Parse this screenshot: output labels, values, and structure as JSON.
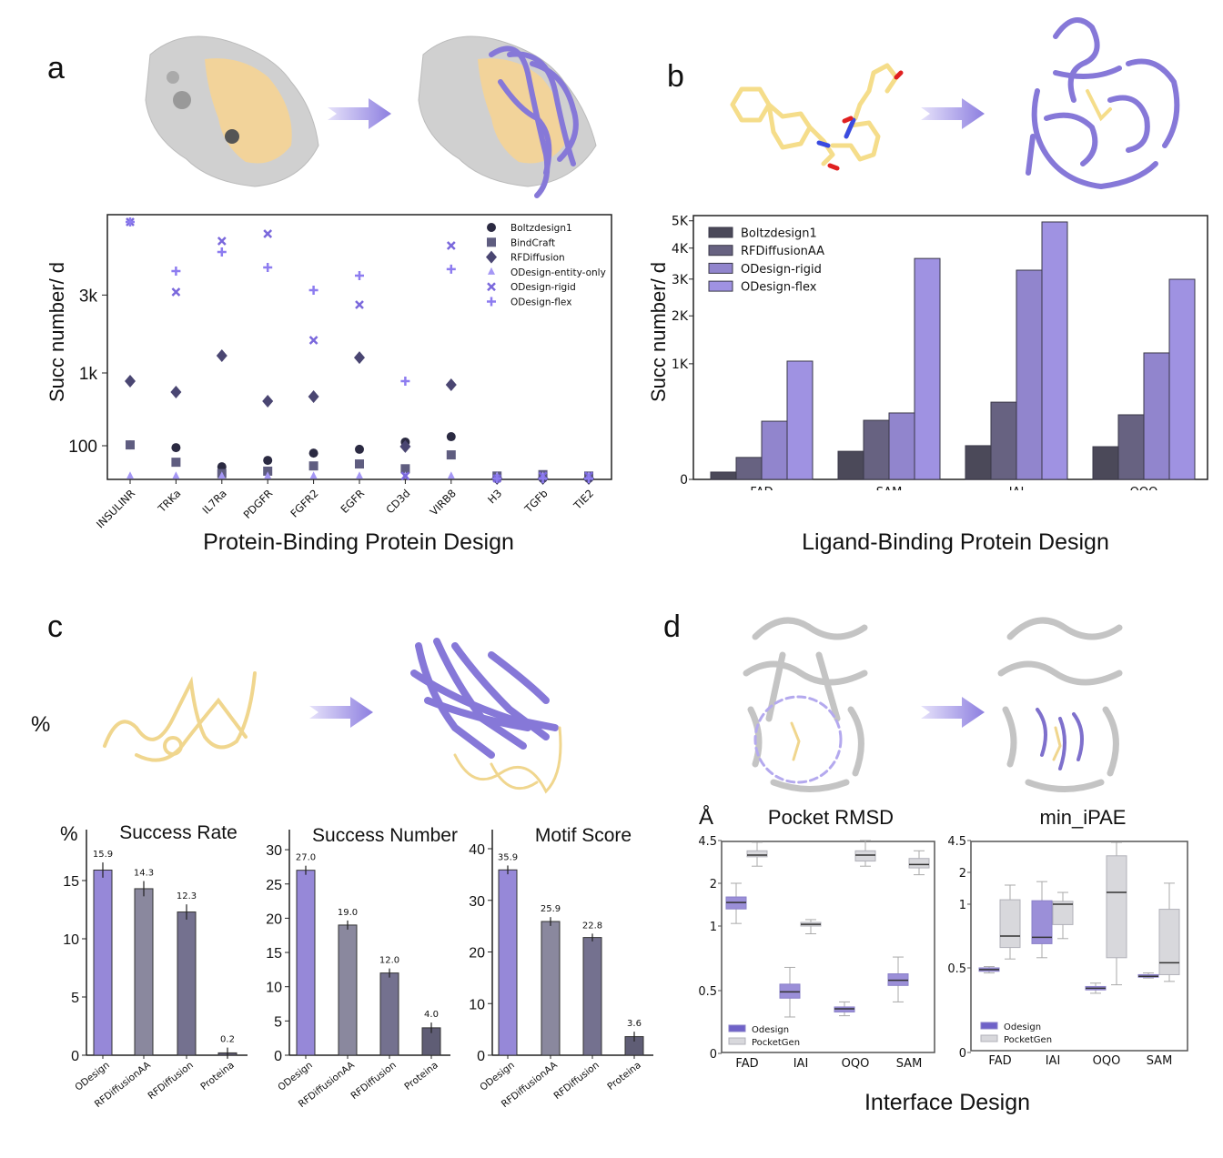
{
  "panel_labels": {
    "a": "a",
    "b": "b",
    "c": "c",
    "d": "d",
    "c_percent": "%"
  },
  "colors": {
    "odesign": "#9688d8",
    "pocketgen": "#d8d8dc",
    "protein_surface": "#d4d4d4",
    "binding_site": "#f2d39a",
    "ribbon": "#8678d8",
    "ligand": "#f5dd8a"
  },
  "chart_data": [
    {
      "type": "scatter",
      "panel": "a",
      "caption": "Protein-Binding Protein Design",
      "ylabel": "Succ number/ d",
      "y_scale": "sqrt",
      "ylim": [
        0,
        6200
      ],
      "yticks": [
        100,
        1000,
        3000
      ],
      "ytick_labels": [
        "100",
        "1k",
        "3k"
      ],
      "legend": "top-right",
      "categories": [
        "INSULINR",
        "TRKa",
        "IL7Ra",
        "PDGFR",
        "FGFR2",
        "EGFR",
        "CD3d",
        "VIRB8",
        "H3",
        "TGFb",
        "TIE2"
      ],
      "series": [
        {
          "name": "Boltzdesign1",
          "marker": "circle",
          "color": "#2b2a42",
          "values": [
            105,
            89,
            14,
            32,
            61,
            80,
            123,
            161,
            0,
            0,
            0
          ]
        },
        {
          "name": "BindCraft",
          "marker": "square",
          "color": "#5f5d80",
          "values": [
            105,
            26,
            3,
            6,
            16,
            21,
            10,
            53,
            1,
            2,
            1
          ]
        },
        {
          "name": "RFDiffusion",
          "marker": "diamond",
          "color": "#4a4672",
          "values": [
            852,
            673,
            1350,
            540,
            605,
            1310,
            95,
            790,
            0,
            0,
            0
          ]
        },
        {
          "name": "ODesign-entity-only",
          "marker": "triangle",
          "color": "#a597f5",
          "values": [
            1,
            1,
            1,
            1,
            1,
            1,
            1,
            1,
            1,
            1,
            1
          ]
        },
        {
          "name": "ODesign-rigid",
          "marker": "x",
          "color": "#7a68dc",
          "values": [
            5850,
            3100,
            5015,
            5325,
            1710,
            2692,
            1,
            4825,
            0,
            1,
            1
          ]
        },
        {
          "name": "ODesign-flex",
          "marker": "plus",
          "color": "#8d7cf0",
          "values": [
            5850,
            3830,
            4565,
            3965,
            3160,
            3665,
            852,
            3900,
            0,
            0,
            0
          ]
        }
      ]
    },
    {
      "type": "bar",
      "panel": "b",
      "caption": "Ligand-Binding Protein Design",
      "ylabel": "Succ number/ d",
      "y_scale": "sqrt",
      "ylim": [
        0,
        5000
      ],
      "yticks": [
        0,
        1000,
        2000,
        3000,
        4000,
        5000
      ],
      "ytick_labels": [
        "0",
        "1K",
        "2K",
        "3K",
        "4K",
        "5K"
      ],
      "legend": "top-left",
      "categories": [
        "FAD",
        "SAM",
        "IAI",
        "OQO"
      ],
      "series": [
        {
          "name": "Boltzdesign1",
          "color": "#4b4959",
          "values": [
            4,
            59,
            85,
            80
          ]
        },
        {
          "name": "RFDiffusionAA",
          "color": "#676281",
          "values": [
            36,
            261,
            446,
            312
          ]
        },
        {
          "name": "ODesign-rigid",
          "color": "#9185cd",
          "values": [
            253,
            330,
            3273,
            1196
          ]
        },
        {
          "name": "ODesign-flex",
          "color": "#9f92e2",
          "values": [
            1046,
            3650,
            4956,
            2995
          ]
        }
      ]
    },
    {
      "type": "bar",
      "panel": "c",
      "title": "Success Rate",
      "ylabel": "%",
      "ylim": [
        0,
        17
      ],
      "yticks": [
        0,
        5,
        10,
        15
      ],
      "categories": [
        "ODesign",
        "RFDiffusionAA",
        "RFDiffusion",
        "Proteina"
      ],
      "values": [
        15.9,
        14.3,
        12.3,
        0.2
      ],
      "value_labels": [
        "15.9",
        "14.3",
        "12.3",
        "0.2"
      ],
      "errors": [
        0.5,
        0.5,
        0.5,
        0.3
      ],
      "colors": [
        "#9688d8",
        "#8a889e",
        "#74718f",
        "#5f5d75"
      ]
    },
    {
      "type": "bar",
      "panel": "c",
      "title": "Success Number",
      "ylim": [
        0,
        30
      ],
      "yticks": [
        0,
        5,
        10,
        15,
        20,
        25,
        30
      ],
      "categories": [
        "ODesign",
        "RFDiffusionAA",
        "RFDiffusion",
        "Proteina"
      ],
      "values": [
        27.0,
        19.0,
        12.0,
        4.0
      ],
      "value_labels": [
        "27.0",
        "19.0",
        "12.0",
        "4.0"
      ],
      "errors": [
        0.4,
        0.4,
        0.4,
        0.5
      ],
      "colors": [
        "#9688d8",
        "#8a889e",
        "#74718f",
        "#5f5d75"
      ]
    },
    {
      "type": "bar",
      "panel": "c",
      "title": "Motif Score",
      "ylim": [
        0,
        40
      ],
      "yticks": [
        0,
        10,
        20,
        30,
        40
      ],
      "categories": [
        "ODesign",
        "RFDiffusionAA",
        "RFDiffusion",
        "Proteina"
      ],
      "values": [
        35.9,
        25.9,
        22.8,
        3.6
      ],
      "value_labels": [
        "35.9",
        "25.9",
        "22.8",
        "3.6"
      ],
      "errors": [
        0.5,
        0.5,
        0.4,
        0.6
      ],
      "colors": [
        "#9688d8",
        "#8a889e",
        "#74718f",
        "#5f5d75"
      ]
    },
    {
      "type": "box",
      "panel": "d",
      "title": "Pocket RMSD",
      "ylabel": "Å",
      "yticks": [
        4.5,
        2,
        1,
        0.5,
        0
      ],
      "ytick_labels": [
        "4.5",
        "2",
        "1",
        "0.5",
        "0"
      ],
      "legend": "bottom-left",
      "categories": [
        "FAD",
        "IAI",
        "OQO",
        "SAM"
      ],
      "series": [
        {
          "name": "Odesign",
          "color": "#9b8fd8",
          "boxes": [
            {
              "low": 1.06,
              "q1": 1.4,
              "median": 1.55,
              "q3": 1.68,
              "high": 2.0
            },
            {
              "low": 0.29,
              "q1": 0.44,
              "median": 0.49,
              "q3": 0.55,
              "high": 0.68
            },
            {
              "low": 0.3,
              "q1": 0.33,
              "median": 0.355,
              "q3": 0.37,
              "high": 0.41
            },
            {
              "low": 0.41,
              "q1": 0.54,
              "median": 0.58,
              "q3": 0.63,
              "high": 0.76
            }
          ]
        },
        {
          "name": "PocketGen",
          "color": "#d8d8dc",
          "boxes": [
            {
              "low": 3.0,
              "q1": 3.55,
              "median": 3.65,
              "q3": 3.9,
              "high": 4.4
            },
            {
              "low": 0.94,
              "q1": 1.0,
              "median": 1.04,
              "q3": 1.085,
              "high": 1.15
            },
            {
              "low": 3.0,
              "q1": 3.3,
              "median": 3.65,
              "q3": 3.9,
              "high": 4.5
            },
            {
              "low": 2.5,
              "q1": 2.9,
              "median": 3.1,
              "q3": 3.45,
              "high": 3.9
            }
          ]
        }
      ]
    },
    {
      "type": "box",
      "panel": "d",
      "title": "min_iPAE",
      "yticks": [
        4.5,
        2,
        1,
        0.5,
        0
      ],
      "ytick_labels": [
        "4.5",
        "2",
        "1",
        "0.5",
        "0"
      ],
      "legend": "bottom-left",
      "categories": [
        "FAD",
        "IAI",
        "OQO",
        "SAM"
      ],
      "series": [
        {
          "name": "Odesign",
          "color": "#9b8fd8",
          "boxes": [
            {
              "low": 0.47,
              "q1": 0.48,
              "median": 0.49,
              "q3": 0.5,
              "high": 0.51
            },
            {
              "low": 0.58,
              "q1": 0.69,
              "median": 0.74,
              "q3": 1.11,
              "high": 1.71
            },
            {
              "low": 0.35,
              "q1": 0.37,
              "median": 0.38,
              "q3": 0.39,
              "high": 0.41
            },
            {
              "low": 0.44,
              "q1": 0.445,
              "median": 0.45,
              "q3": 0.46,
              "high": 0.47
            }
          ]
        },
        {
          "name": "PocketGen",
          "color": "#d8d8dc",
          "boxes": [
            {
              "low": 0.57,
              "q1": 0.66,
              "median": 0.75,
              "q3": 1.14,
              "high": 1.6
            },
            {
              "low": 0.73,
              "q1": 0.84,
              "median": 1.0,
              "q3": 1.09,
              "high": 1.37
            },
            {
              "low": 0.4,
              "q1": 0.58,
              "median": 1.37,
              "q3": 3.3,
              "high": 4.36
            },
            {
              "low": 0.42,
              "q1": 0.46,
              "median": 0.54,
              "q3": 0.96,
              "high": 1.66
            }
          ]
        }
      ]
    }
  ],
  "panel_d_caption": "Interface Design"
}
